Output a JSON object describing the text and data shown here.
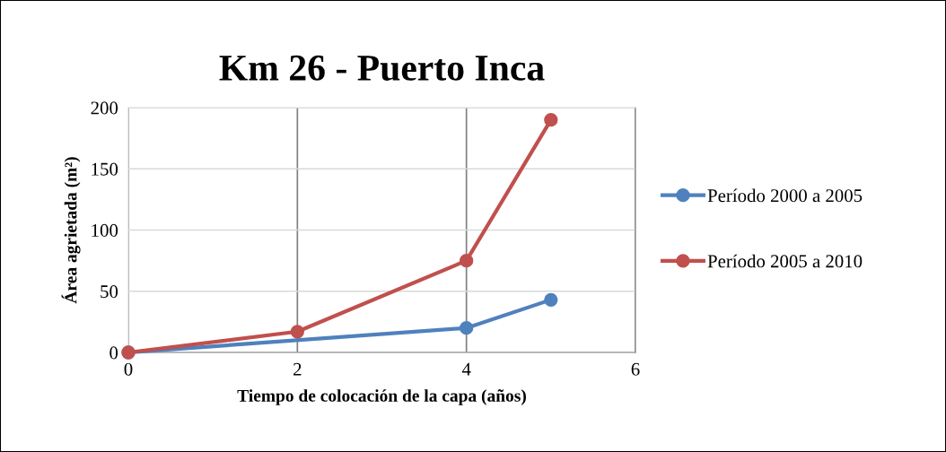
{
  "chart_data": {
    "type": "line",
    "title": "Km 26 - Puerto Inca",
    "xlabel": "Tiempo de colocación de la capa (años)",
    "ylabel": "Área agrietada (m²)",
    "series": [
      {
        "name": "Período 2000 a 2005",
        "color": "#4f81bd",
        "x": [
          0,
          4,
          5
        ],
        "values": [
          0,
          20,
          43
        ]
      },
      {
        "name": "Período 2005 a 2010",
        "color": "#c0504d",
        "x": [
          0,
          2,
          4,
          5
        ],
        "values": [
          0,
          17,
          75,
          190
        ]
      }
    ],
    "xlim": [
      0,
      6
    ],
    "xticks": [
      0,
      2,
      4,
      6
    ],
    "ylim": [
      0,
      200
    ],
    "yticks": [
      0,
      50,
      100,
      150,
      200
    ],
    "grid": true,
    "legend": "right",
    "marker": "circle",
    "line_style": "solid"
  }
}
